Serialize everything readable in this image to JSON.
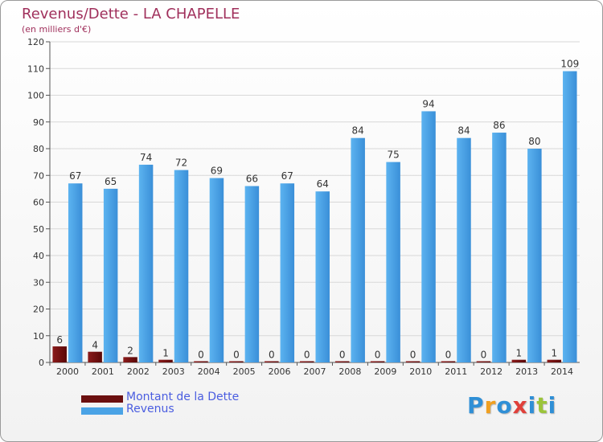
{
  "title": "Revenus/Dette - LA CHAPELLE",
  "subtitle": "(en milliers d'€)",
  "legend": [
    {
      "label": "Montant de la Dette",
      "color": "#6b0f0f"
    },
    {
      "label": "Revenus",
      "color": "#4aa3e6"
    }
  ],
  "logo": {
    "text": "Proxiti",
    "colors": [
      "#2f8fd6",
      "#f0a020",
      "#2f8fd6",
      "#e0403a",
      "#2f8fd6",
      "#9bc43a",
      "#2f8fd6"
    ]
  },
  "chart_data": {
    "type": "bar",
    "categories": [
      "2000",
      "2001",
      "2002",
      "2003",
      "2004",
      "2005",
      "2006",
      "2007",
      "2008",
      "2009",
      "2010",
      "2011",
      "2012",
      "2013",
      "2014"
    ],
    "series": [
      {
        "name": "Montant de la Dette",
        "color": "#7a1010",
        "values": [
          6,
          4,
          2,
          1,
          0,
          0,
          0,
          0,
          0,
          0,
          0,
          0,
          0,
          1,
          1
        ]
      },
      {
        "name": "Revenus",
        "color": "#4aa3e6",
        "values": [
          67,
          65,
          74,
          72,
          69,
          66,
          67,
          64,
          84,
          75,
          94,
          84,
          86,
          80,
          109
        ]
      }
    ],
    "ylim": [
      0,
      120
    ],
    "yticks": [
      0,
      10,
      20,
      30,
      40,
      50,
      60,
      70,
      80,
      90,
      100,
      110,
      120
    ],
    "grid": true
  }
}
